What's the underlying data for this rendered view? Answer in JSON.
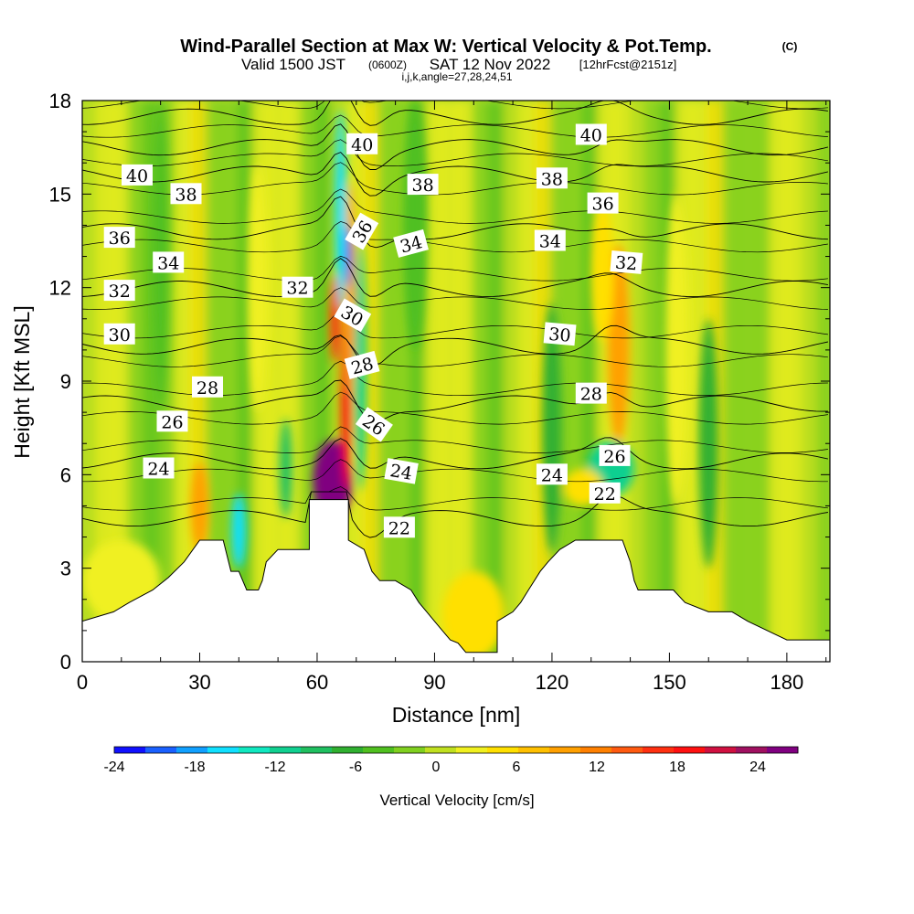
{
  "title": {
    "main": "Wind-Parallel Section at Max W: Vertical Velocity & Pot.Temp.",
    "copyright": "(C)",
    "valid_prefix": "Valid 1500 JST",
    "valid_utc": "(0600Z)",
    "valid_date": "SAT 12 Nov 2022",
    "forecast": "[12hrFcst@2151z]",
    "indices": "i,j,k,angle=27,28,24,51"
  },
  "chart_data": {
    "type": "heatmap",
    "xlabel": "Distance [nm]",
    "ylabel": "Height [Kft MSL]",
    "xlim": [
      0,
      191
    ],
    "ylim": [
      0,
      18
    ],
    "x_ticks": [
      0,
      30,
      60,
      90,
      120,
      150,
      180
    ],
    "y_ticks": [
      0,
      3,
      6,
      9,
      12,
      15,
      18
    ],
    "colorbar": {
      "label": "Vertical Velocity [cm/s]",
      "ticks": [
        -24,
        -18,
        -12,
        -6,
        0,
        6,
        12,
        18,
        24
      ],
      "range": [
        -24,
        27
      ],
      "colors": [
        "#1010ff",
        "#1a60ff",
        "#10a0ff",
        "#10e0ff",
        "#10e8c0",
        "#10d090",
        "#20c060",
        "#30b030",
        "#50c020",
        "#80d020",
        "#c0e020",
        "#f0f020",
        "#ffe000",
        "#ffc000",
        "#ffa000",
        "#ff8000",
        "#ff5a10",
        "#ff3010",
        "#ff1010",
        "#d01040",
        "#a01060",
        "#800080"
      ]
    },
    "terrain": [
      [
        0,
        1.3
      ],
      [
        8,
        1.6
      ],
      [
        12,
        1.9
      ],
      [
        18,
        2.3
      ],
      [
        22,
        2.7
      ],
      [
        26,
        3.2
      ],
      [
        30,
        3.9
      ],
      [
        36,
        3.9
      ],
      [
        38,
        2.9
      ],
      [
        40,
        2.9
      ],
      [
        42,
        2.3
      ],
      [
        45,
        2.3
      ],
      [
        46,
        2.6
      ],
      [
        47,
        3.2
      ],
      [
        50,
        3.6
      ],
      [
        58,
        3.6
      ],
      [
        58,
        5.2
      ],
      [
        68,
        5.2
      ],
      [
        68,
        3.9
      ],
      [
        72,
        3.6
      ],
      [
        74,
        2.9
      ],
      [
        76,
        2.6
      ],
      [
        80,
        2.6
      ],
      [
        84,
        2.3
      ],
      [
        86,
        1.9
      ],
      [
        88,
        1.6
      ],
      [
        90,
        1.3
      ],
      [
        92,
        1.0
      ],
      [
        94,
        0.7
      ],
      [
        96,
        0.6
      ],
      [
        98,
        0.3
      ],
      [
        106,
        0.3
      ],
      [
        106,
        1.3
      ],
      [
        110,
        1.6
      ],
      [
        112,
        1.9
      ],
      [
        114,
        2.3
      ],
      [
        117,
        2.9
      ],
      [
        119,
        3.2
      ],
      [
        122,
        3.6
      ],
      [
        126,
        3.9
      ],
      [
        138,
        3.9
      ],
      [
        140,
        3.2
      ],
      [
        141,
        2.6
      ],
      [
        142,
        2.3
      ],
      [
        151,
        2.3
      ],
      [
        154,
        1.9
      ],
      [
        160,
        1.6
      ],
      [
        166,
        1.6
      ],
      [
        170,
        1.3
      ],
      [
        175,
        1.0
      ],
      [
        180,
        0.7
      ],
      [
        191,
        0.7
      ],
      [
        191,
        0
      ]
    ],
    "velocity_features": [
      {
        "x": 64,
        "y": 5.8,
        "rx": 5,
        "ry": 1.3,
        "value": 26
      },
      {
        "x": 67.5,
        "y": 8.5,
        "rx": 1.3,
        "ry": 3.0,
        "value": 20
      },
      {
        "x": 64.5,
        "y": 11.0,
        "rx": 1.2,
        "ry": 1.4,
        "value": 17
      },
      {
        "x": 68.5,
        "y": 12.0,
        "rx": 1.2,
        "ry": 3.4,
        "value": 10
      },
      {
        "x": 71,
        "y": 9.5,
        "rx": 1.5,
        "ry": 4.0,
        "value": -12
      },
      {
        "x": 66,
        "y": 14.5,
        "rx": 1.4,
        "ry": 3.2,
        "value": -17
      },
      {
        "x": 68,
        "y": 13.0,
        "rx": 0.7,
        "ry": 1.0,
        "value": -23
      },
      {
        "x": 40,
        "y": 4.2,
        "rx": 1.8,
        "ry": 1.2,
        "value": -15
      },
      {
        "x": 30,
        "y": 5.0,
        "rx": 2.2,
        "ry": 1.4,
        "value": 9
      },
      {
        "x": 52,
        "y": 6.2,
        "rx": 1.6,
        "ry": 1.6,
        "value": -9
      },
      {
        "x": 137,
        "y": 10.2,
        "rx": 2.8,
        "ry": 3.2,
        "value": 10
      },
      {
        "x": 133,
        "y": 12.5,
        "rx": 2.8,
        "ry": 2.2,
        "value": 5
      },
      {
        "x": 135,
        "y": 6.2,
        "rx": 6,
        "ry": 0.9,
        "value": -11
      },
      {
        "x": 128,
        "y": 5.6,
        "rx": 5,
        "ry": 0.6,
        "value": 6
      },
      {
        "x": 10,
        "y": 2.6,
        "rx": 10,
        "ry": 1.3,
        "value": 3
      },
      {
        "x": 100,
        "y": 1.5,
        "rx": 8,
        "ry": 1.4,
        "value": 5
      },
      {
        "x": 120,
        "y": 7.5,
        "rx": 2.5,
        "ry": 4,
        "value": -6
      },
      {
        "x": 152,
        "y": 10,
        "rx": 3,
        "ry": 5,
        "value": 3
      },
      {
        "x": 160,
        "y": 7,
        "rx": 2.5,
        "ry": 4,
        "value": -6
      },
      {
        "x": 85,
        "y": 14,
        "rx": 3,
        "ry": 4,
        "value": -5
      },
      {
        "x": 20,
        "y": 13,
        "rx": 2,
        "ry": 5,
        "value": -5
      },
      {
        "x": 45,
        "y": 12,
        "rx": 2.5,
        "ry": 4,
        "value": 3
      }
    ],
    "isentrope_levels": [
      22,
      24,
      26,
      28,
      30,
      32,
      34,
      36,
      38,
      40
    ],
    "contour_labels": [
      {
        "text": "40",
        "x": 14,
        "y": 15.6,
        "angle": 0
      },
      {
        "text": "38",
        "x": 26.5,
        "y": 15.0,
        "angle": 0
      },
      {
        "text": "36",
        "x": 9.5,
        "y": 13.6,
        "angle": 0
      },
      {
        "text": "34",
        "x": 22,
        "y": 12.8,
        "angle": 0
      },
      {
        "text": "32",
        "x": 9.5,
        "y": 11.9,
        "angle": 0
      },
      {
        "text": "30",
        "x": 9.5,
        "y": 10.5,
        "angle": 0
      },
      {
        "text": "28",
        "x": 32,
        "y": 8.8,
        "angle": 0
      },
      {
        "text": "26",
        "x": 23,
        "y": 7.7,
        "angle": 0
      },
      {
        "text": "24",
        "x": 19.5,
        "y": 6.2,
        "angle": 0
      },
      {
        "text": "40",
        "x": 71.5,
        "y": 16.6,
        "angle": 0
      },
      {
        "text": "38",
        "x": 87,
        "y": 15.3,
        "angle": 0
      },
      {
        "text": "36",
        "x": 71.5,
        "y": 13.8,
        "angle": -60
      },
      {
        "text": "34",
        "x": 84,
        "y": 13.4,
        "angle": -15
      },
      {
        "text": "32",
        "x": 55,
        "y": 12.0,
        "angle": 0
      },
      {
        "text": "30",
        "x": 69,
        "y": 11.1,
        "angle": 30
      },
      {
        "text": "28",
        "x": 71.5,
        "y": 9.5,
        "angle": -15
      },
      {
        "text": "26",
        "x": 74.5,
        "y": 7.6,
        "angle": 35
      },
      {
        "text": "24",
        "x": 81.5,
        "y": 6.1,
        "angle": 10
      },
      {
        "text": "22",
        "x": 81,
        "y": 4.3,
        "angle": 0
      },
      {
        "text": "40",
        "x": 130,
        "y": 16.9,
        "angle": 0
      },
      {
        "text": "38",
        "x": 120,
        "y": 15.5,
        "angle": 0
      },
      {
        "text": "36",
        "x": 133,
        "y": 14.7,
        "angle": 0
      },
      {
        "text": "34",
        "x": 119.5,
        "y": 13.5,
        "angle": 0
      },
      {
        "text": "32",
        "x": 139,
        "y": 12.8,
        "angle": 5
      },
      {
        "text": "30",
        "x": 122,
        "y": 10.5,
        "angle": 5
      },
      {
        "text": "28",
        "x": 130,
        "y": 8.6,
        "angle": 0
      },
      {
        "text": "26",
        "x": 136,
        "y": 6.6,
        "angle": 0
      },
      {
        "text": "24",
        "x": 120,
        "y": 6.0,
        "angle": 0
      },
      {
        "text": "22",
        "x": 133.5,
        "y": 5.4,
        "angle": 0
      }
    ]
  }
}
